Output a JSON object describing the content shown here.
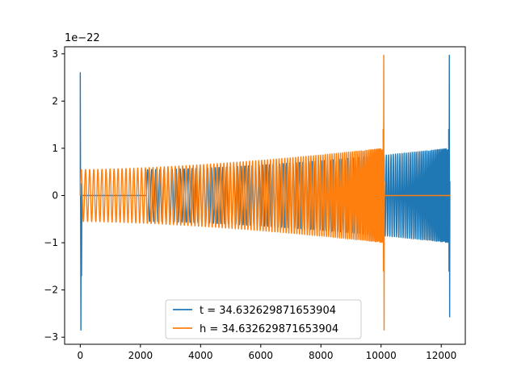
{
  "chart_data": {
    "type": "line",
    "title": "",
    "xlabel": "",
    "ylabel": "",
    "offset_text": "1e−22",
    "xlim": [
      -520,
      12800
    ],
    "ylim": [
      -3.15,
      3.15
    ],
    "xticks": [
      {
        "value": 0,
        "label": "0"
      },
      {
        "value": 2000,
        "label": "2000"
      },
      {
        "value": 4000,
        "label": "4000"
      },
      {
        "value": 6000,
        "label": "6000"
      },
      {
        "value": 8000,
        "label": "8000"
      },
      {
        "value": 10000,
        "label": "10000"
      },
      {
        "value": 12000,
        "label": "12000"
      }
    ],
    "yticks": [
      {
        "value": -3,
        "label": "−3"
      },
      {
        "value": -2,
        "label": "−2"
      },
      {
        "value": -1,
        "label": "−1"
      },
      {
        "value": 0,
        "label": "0"
      },
      {
        "value": 1,
        "label": "1"
      },
      {
        "value": 2,
        "label": "2"
      },
      {
        "value": 3,
        "label": "3"
      }
    ],
    "grid": false,
    "legend_position": "lower center",
    "series": [
      {
        "name": "t = 34.632629871653904",
        "color": "#1f77b4",
        "components": [
          {
            "kind": "spike",
            "x": 0,
            "min": -2.85,
            "max": 2.6
          },
          {
            "kind": "flat",
            "x_start": 0,
            "x_end": 2200,
            "value": 0
          },
          {
            "kind": "chirp",
            "x_start": 2200,
            "x_end": 12280,
            "amplitude_start": 0.55,
            "amplitude_end": 1.0,
            "peak_max": 2.97,
            "peak_min": -2.57
          }
        ]
      },
      {
        "name": "h = 34.632629871653904",
        "color": "#ff7f0e",
        "components": [
          {
            "kind": "chirp",
            "x_start": 0,
            "x_end": 10100,
            "amplitude_start": 0.55,
            "amplitude_end": 1.0,
            "peak_max": 2.97,
            "peak_min": -2.85
          },
          {
            "kind": "flat",
            "x_start": 10100,
            "x_end": 12300,
            "value": 0
          }
        ]
      }
    ]
  }
}
